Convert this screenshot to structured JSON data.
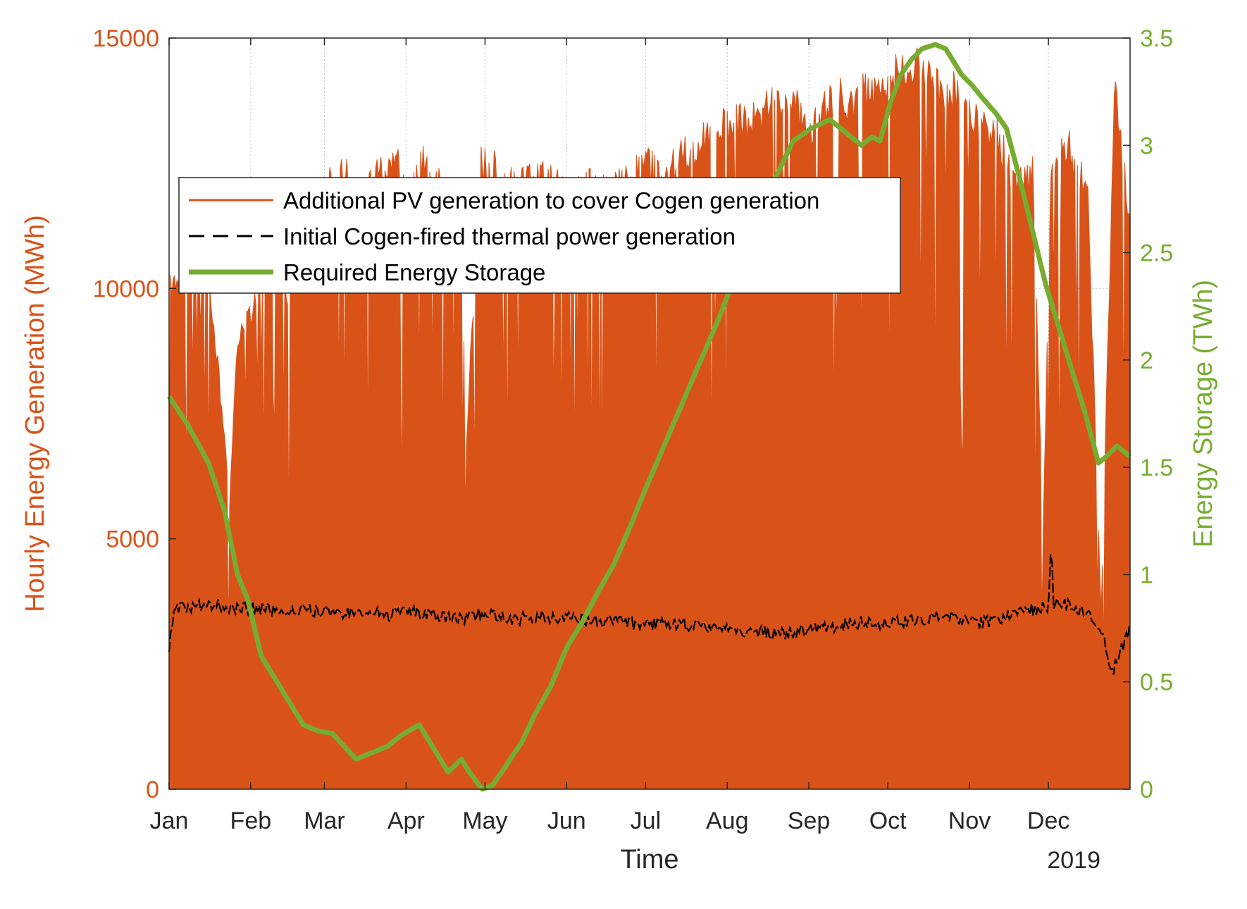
{
  "colors": {
    "pv": "#D95319",
    "storage": "#77AC30",
    "cogen": "#000000",
    "text": "#262626",
    "grid": "#c8c8c8"
  },
  "chart_data": {
    "type": "area",
    "title": "",
    "xlabel": "Time",
    "year_label": "2019",
    "ylabel_left": "Hourly Energy Generation (MWh)",
    "ylabel_right": "Energy Storage (TWh)",
    "ylim_left": [
      0,
      15000
    ],
    "ylim_right": [
      0,
      3.5
    ],
    "yticks_left": [
      "0",
      "5000",
      "10000",
      "15000"
    ],
    "yticks_right": [
      "0",
      "0.5",
      "1",
      "1.5",
      "2",
      "2.5",
      "3",
      "3.5"
    ],
    "x_tick_labels": [
      "Jan",
      "Feb",
      "Mar",
      "Apr",
      "May",
      "Jun",
      "Jul",
      "Aug",
      "Sep",
      "Oct",
      "Nov",
      "Dec"
    ],
    "x_unit": "day of year",
    "xlim": [
      1,
      366
    ],
    "grid": true,
    "legend_position": "top-left",
    "legend": [
      "Additional PV generation to cover Cogen generation",
      "Initial Cogen-fired thermal power generation",
      "Required Energy Storage"
    ],
    "series": [
      {
        "name": "Additional PV generation to cover Cogen generation",
        "axis": "left",
        "style": "filled bars (daily envelope of hourly values)",
        "x": [
          1,
          8,
          15,
          20,
          24,
          27,
          32,
          40,
          46,
          53,
          60,
          67,
          74,
          81,
          88,
          91,
          98,
          105,
          112,
          114,
          119,
          126,
          133,
          140,
          147,
          154,
          161,
          168,
          175,
          182,
          189,
          196,
          203,
          210,
          217,
          224,
          231,
          238,
          245,
          252,
          259,
          266,
          273,
          280,
          287,
          294,
          301,
          308,
          315,
          322,
          329,
          333,
          336,
          343,
          350,
          355,
          360,
          366
        ],
        "values": [
          10500,
          10800,
          11000,
          8500,
          6000,
          9500,
          9800,
          11500,
          10200,
          12000,
          12500,
          12800,
          12300,
          12900,
          13300,
          12000,
          13200,
          12500,
          12000,
          7200,
          13100,
          12800,
          12500,
          12700,
          12600,
          12200,
          12800,
          12400,
          12600,
          13000,
          12700,
          13200,
          13400,
          13700,
          13800,
          14000,
          14200,
          14300,
          13600,
          14400,
          14300,
          14500,
          14700,
          15000,
          14900,
          14600,
          14400,
          13800,
          13700,
          12500,
          12800,
          5200,
          12900,
          13300,
          12300,
          3700,
          14500,
          11800
        ]
      },
      {
        "name": "Initial Cogen-fired thermal power generation",
        "axis": "left",
        "style": "dashed",
        "x": [
          1,
          2,
          3,
          8,
          15,
          22,
          29,
          36,
          43,
          50,
          57,
          64,
          71,
          78,
          85,
          92,
          99,
          106,
          113,
          120,
          127,
          134,
          141,
          148,
          155,
          162,
          169,
          176,
          183,
          190,
          197,
          204,
          211,
          218,
          225,
          232,
          239,
          246,
          253,
          260,
          267,
          274,
          281,
          288,
          295,
          302,
          309,
          316,
          323,
          330,
          335,
          336,
          337,
          344,
          351,
          356,
          359,
          362,
          366
        ],
        "values": [
          2800,
          3300,
          3600,
          3650,
          3700,
          3650,
          3600,
          3620,
          3580,
          3600,
          3560,
          3550,
          3500,
          3520,
          3480,
          3550,
          3500,
          3450,
          3420,
          3500,
          3430,
          3400,
          3450,
          3420,
          3400,
          3380,
          3350,
          3300,
          3320,
          3280,
          3300,
          3250,
          3200,
          3180,
          3150,
          3100,
          3150,
          3200,
          3250,
          3300,
          3350,
          3300,
          3350,
          3400,
          3450,
          3400,
          3300,
          3400,
          3500,
          3600,
          3650,
          5000,
          3700,
          3680,
          3500,
          3100,
          2300,
          2700,
          3200
        ]
      },
      {
        "name": "Required Energy Storage",
        "axis": "right",
        "style": "solid thick",
        "x": [
          1,
          8,
          16,
          22,
          27,
          31,
          36,
          42,
          48,
          52,
          58,
          63,
          66,
          72,
          78,
          84,
          89,
          96,
          102,
          107,
          112,
          115,
          120,
          124,
          129,
          135,
          140,
          146,
          152,
          158,
          164,
          170,
          176,
          182,
          189,
          196,
          203,
          210,
          217,
          224,
          231,
          238,
          245,
          252,
          259,
          264,
          268,
          271,
          275,
          279,
          283,
          287,
          292,
          296,
          302,
          306,
          310,
          315,
          319,
          324,
          329,
          334,
          339,
          344,
          349,
          354,
          357,
          361,
          366
        ],
        "values": [
          1.83,
          1.7,
          1.52,
          1.3,
          1.0,
          0.88,
          0.62,
          0.5,
          0.38,
          0.3,
          0.27,
          0.26,
          0.22,
          0.14,
          0.17,
          0.2,
          0.25,
          0.3,
          0.18,
          0.08,
          0.14,
          0.08,
          0.0,
          0.02,
          0.11,
          0.22,
          0.35,
          0.48,
          0.66,
          0.78,
          0.92,
          1.05,
          1.22,
          1.4,
          1.6,
          1.8,
          2.0,
          2.2,
          2.42,
          2.62,
          2.84,
          3.02,
          3.08,
          3.12,
          3.05,
          3.0,
          3.04,
          3.02,
          3.2,
          3.33,
          3.4,
          3.45,
          3.47,
          3.45,
          3.33,
          3.28,
          3.22,
          3.15,
          3.08,
          2.85,
          2.6,
          2.35,
          2.15,
          1.95,
          1.75,
          1.52,
          1.55,
          1.6,
          1.55
        ]
      }
    ]
  }
}
